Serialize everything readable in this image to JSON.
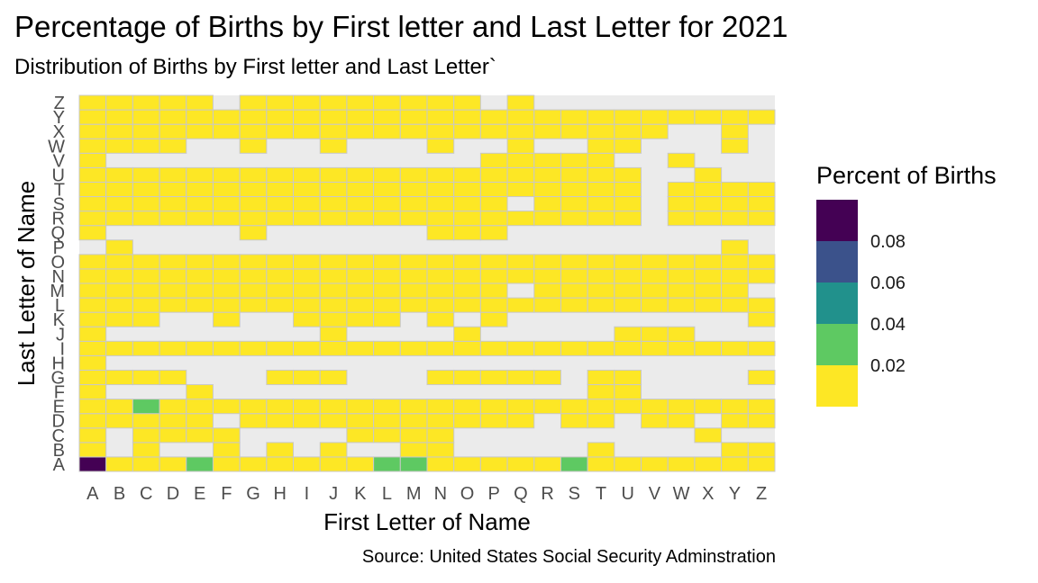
{
  "title": "Percentage of Births by First letter and Last Letter for 2021",
  "subtitle": "Distribution of Births by First letter and Last Letter`",
  "caption": "Source: United States Social Security Adminstration",
  "colors": {
    "panel_bg": "#ebebeb",
    "tile_border": "#c8c8c8",
    "viridis": [
      "#fde725",
      "#5ec962",
      "#21918c",
      "#3b528b",
      "#440154"
    ]
  },
  "chart_data": {
    "type": "heatmap",
    "xlabel": "First Letter of Name",
    "ylabel": "Last Letter of Name",
    "x": [
      "A",
      "B",
      "C",
      "D",
      "E",
      "F",
      "G",
      "H",
      "I",
      "J",
      "K",
      "L",
      "M",
      "N",
      "O",
      "P",
      "Q",
      "R",
      "S",
      "T",
      "U",
      "V",
      "W",
      "X",
      "Y",
      "Z"
    ],
    "y": [
      "A",
      "B",
      "C",
      "D",
      "E",
      "F",
      "G",
      "H",
      "I",
      "J",
      "K",
      "L",
      "M",
      "N",
      "O",
      "P",
      "Q",
      "R",
      "S",
      "T",
      "U",
      "V",
      "W",
      "X",
      "Y",
      "Z"
    ],
    "legend": {
      "title": "Percent of Births",
      "breaks": [
        0.02,
        0.04,
        0.06,
        0.08
      ],
      "break_labels": [
        "0.02",
        "0.04",
        "0.06",
        "0.08"
      ],
      "bins": [
        0,
        0.02,
        0.04,
        0.06,
        0.08,
        0.1
      ]
    },
    "highlight_values": {
      "A_A": 0.09,
      "E_A": 0.025,
      "L_A": 0.025,
      "M_A": 0.025,
      "S_A": 0.025,
      "C_E": 0.025
    },
    "default_value": 0.005,
    "rows": {
      "A": "AAAAAAAAAAAAAAAAAAAAAAAAAA",
      "B": "A.A..A.A.A..AA.....A....AA",
      "C": "A.AAAA....AAAA.........A..",
      "D": "AAAAA.AAAAAAAAAAA.AA.AA.AA",
      "E": "AAAAAAAAAAAAAAAAAAAAAAAAAA",
      "F": "A...A..............AA.....",
      "G": "AAAA...AAA...AAAAA.AA....A",
      "H": "A..........................",
      "I": "AAAAAAAAAAAAAAAAAAAAAAAAAA",
      "J": "A........A....A.....AAA.....",
      "K": "AAA..A..AAAA.A.A.........A",
      "L": "AAAAAAAAAAAAAAAAAAAAAAAAAA",
      "M": "AAAAAAAAAAAAAAAA.AAAAAAAA.",
      "N": "AAAAAAAAAAAAAAAAAAAAAAAAAA",
      "O": "AAAAAAAAAAAAAAAAAAAAAAAAAA",
      "P": ".A......................A.",
      "Q": "A.....A......AAA............",
      "R": "AAAAAAAAAAAAAAAAAAAAA.AAAAAA",
      "S": "AAAAAAAAAAAAAAAA.AAAA.AAAAAA",
      "T": "AAAAAAAAAAAAAAAAAAAAA.AAAAAA",
      "U": "AAAAAAAAAAAAAAAAAAAAA..A..AA",
      "V": "A..............AAAAA..A......",
      "W": "AAAA..A..A...A..A..AA...A.A.",
      "X": "AAAAAAAAAAAAAAAAAAAAAA..A.A.",
      "Y": "AAAAAAAAAAAAAAAAAAAAAAAAAA",
      "Z": "AAAAA.AAAAAAAAA.A...........A"
    }
  }
}
